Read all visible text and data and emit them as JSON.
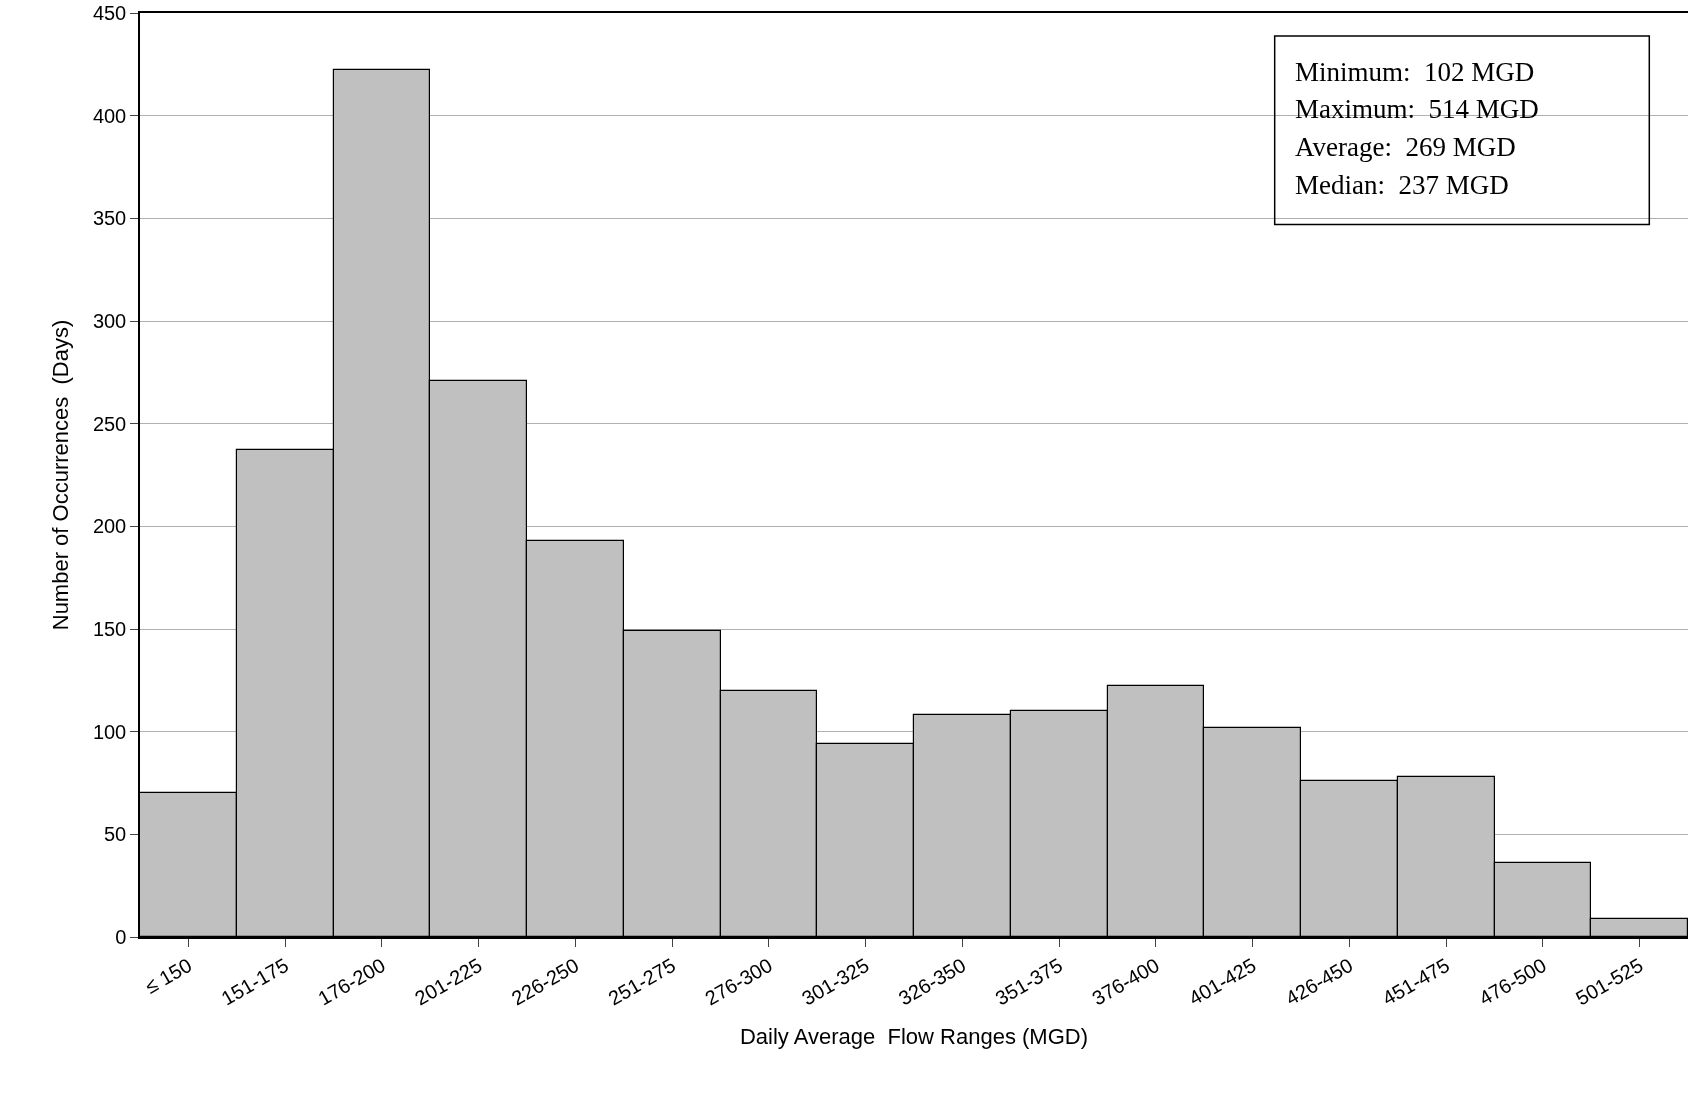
{
  "chart_data": {
    "type": "bar",
    "xlabel": "Daily Average  Flow Ranges (MGD)",
    "ylabel": "Number of Occurrences  (Days)",
    "categories": [
      "≤ 150",
      "151-175",
      "176-200",
      "201-225",
      "226-250",
      "251-275",
      "276-300",
      "301-325",
      "326-350",
      "351-375",
      "376-400",
      "401-425",
      "426-450",
      "451-475",
      "476-500",
      "501-525"
    ],
    "values": [
      70,
      237,
      422,
      271,
      193,
      149,
      120,
      94,
      108,
      110,
      122,
      102,
      76,
      78,
      36,
      9
    ],
    "color": "#c0c0c0",
    "ylim": [
      0,
      450
    ],
    "yticks": [
      0,
      50,
      100,
      150,
      200,
      250,
      300,
      350,
      400,
      450
    ],
    "grid": "y",
    "legend": false,
    "annotations": [
      "Minimum:  102 MGD",
      "Maximum:  514 MGD",
      "Average:  269 MGD",
      "Median:  237 MGD"
    ]
  }
}
